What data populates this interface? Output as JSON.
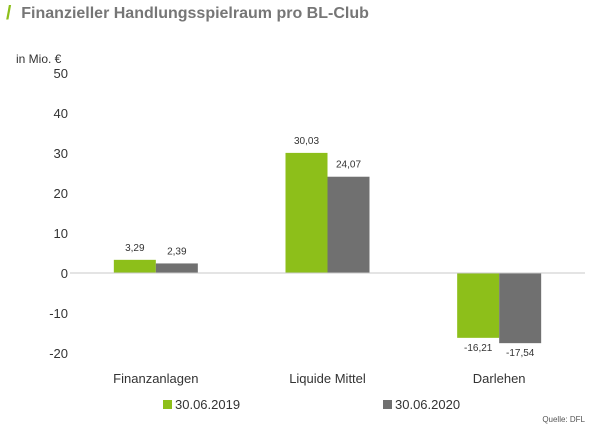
{
  "header": {
    "slash": "/",
    "title": "Finanzieller Handlungsspielraum pro BL-Club"
  },
  "chart_data": {
    "type": "bar",
    "title": "Finanzieller Handlungsspielraum pro BL-Club",
    "ylabel": "in Mio. €",
    "xlabel": "",
    "ylim": [
      -20,
      50
    ],
    "yticks": [
      -20,
      -10,
      0,
      10,
      20,
      30,
      40,
      50
    ],
    "grid": false,
    "legend_position": "bottom",
    "categories": [
      "Finanzanlagen",
      "Liquide Mittel",
      "Darlehen"
    ],
    "series": [
      {
        "name": "30.06.2019",
        "color": "#8dbf1a",
        "values": [
          3.29,
          30.03,
          -16.21
        ],
        "labels": [
          "3,29",
          "30,03",
          "-16,21"
        ]
      },
      {
        "name": "30.06.2020",
        "color": "#707070",
        "values": [
          2.39,
          24.07,
          -17.54
        ],
        "labels": [
          "2,39",
          "24,07",
          "-17,54"
        ]
      }
    ],
    "source": "Quelle: DFL"
  }
}
